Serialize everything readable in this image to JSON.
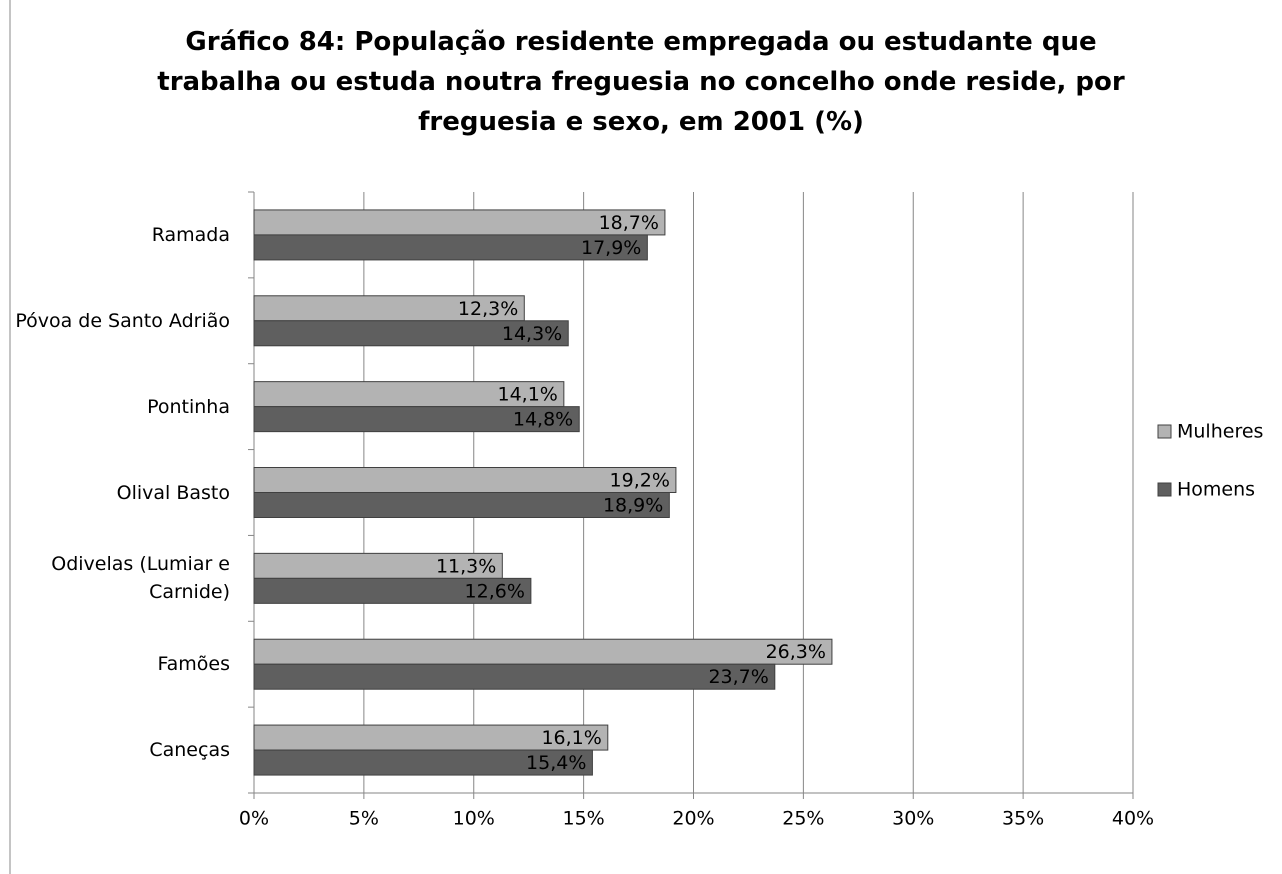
{
  "chart_data": {
    "type": "barh",
    "title": "Gráfico 84: População residente empregada ou estudante que trabalha ou estuda noutra freguesia no concelho onde reside, por freguesia e sexo, em 2001 (%)",
    "categories": [
      "Ramada",
      "Póvoa de Santo Adrião",
      "Pontinha",
      "Olival Basto",
      "Odivelas (Lumiar e Carnide)",
      "Famões",
      "Caneças"
    ],
    "series": [
      {
        "name": "Mulheres",
        "color": "#b3b3b3",
        "values": [
          18.7,
          12.3,
          14.1,
          19.2,
          11.3,
          26.3,
          16.1
        ],
        "value_labels": [
          "18,7%",
          "12,3%",
          "14,1%",
          "19,2%",
          "11,3%",
          "26,3%",
          "16,1%"
        ]
      },
      {
        "name": "Homens",
        "color": "#5f5f5f",
        "values": [
          17.9,
          14.3,
          14.8,
          18.9,
          12.6,
          23.7,
          15.4
        ],
        "value_labels": [
          "17,9%",
          "14,3%",
          "14,8%",
          "18,9%",
          "12,6%",
          "23,7%",
          "15,4%"
        ]
      }
    ],
    "xlim": [
      0,
      40
    ],
    "xticks": [
      {
        "value": 0,
        "label": "0%"
      },
      {
        "value": 5,
        "label": "5%"
      },
      {
        "value": 10,
        "label": "10%"
      },
      {
        "value": 15,
        "label": "15%"
      },
      {
        "value": 20,
        "label": "20%"
      },
      {
        "value": 25,
        "label": "25%"
      },
      {
        "value": 30,
        "label": "30%"
      },
      {
        "value": 35,
        "label": "35%"
      },
      {
        "value": 40,
        "label": "40%"
      }
    ],
    "grid": true,
    "legend": "right"
  }
}
